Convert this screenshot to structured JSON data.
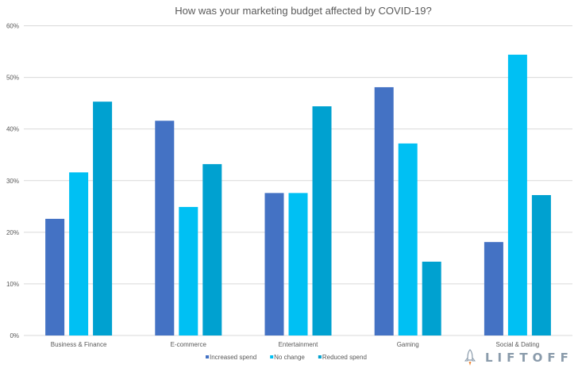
{
  "chart_data": {
    "type": "bar",
    "title": "How was your marketing budget affected by COVID-19?",
    "xlabel": "",
    "ylabel": "",
    "ylim": [
      0,
      60
    ],
    "yticks": [
      0,
      10,
      20,
      30,
      40,
      50,
      60
    ],
    "ytick_labels": [
      "0%",
      "10%",
      "20%",
      "30%",
      "40%",
      "50%",
      "60%"
    ],
    "grid": true,
    "legend_position": "bottom",
    "categories": [
      "Business & Finance",
      "E-commerce",
      "Entertainment",
      "Gaming",
      "Social & Dating"
    ],
    "series": [
      {
        "name": "Increased spend",
        "color": "#4472c4",
        "values": [
          22.6,
          41.6,
          27.6,
          48.1,
          18.1
        ]
      },
      {
        "name": "No change",
        "color": "#00c0f3",
        "values": [
          31.6,
          24.9,
          27.6,
          37.2,
          54.4
        ]
      },
      {
        "name": "Reduced spend",
        "color": "#00a1d0",
        "values": [
          45.3,
          33.2,
          44.4,
          14.3,
          27.2
        ]
      }
    ]
  },
  "branding": {
    "logo_text": "LIFTOFF",
    "logo_icon": "rocket-icon"
  }
}
